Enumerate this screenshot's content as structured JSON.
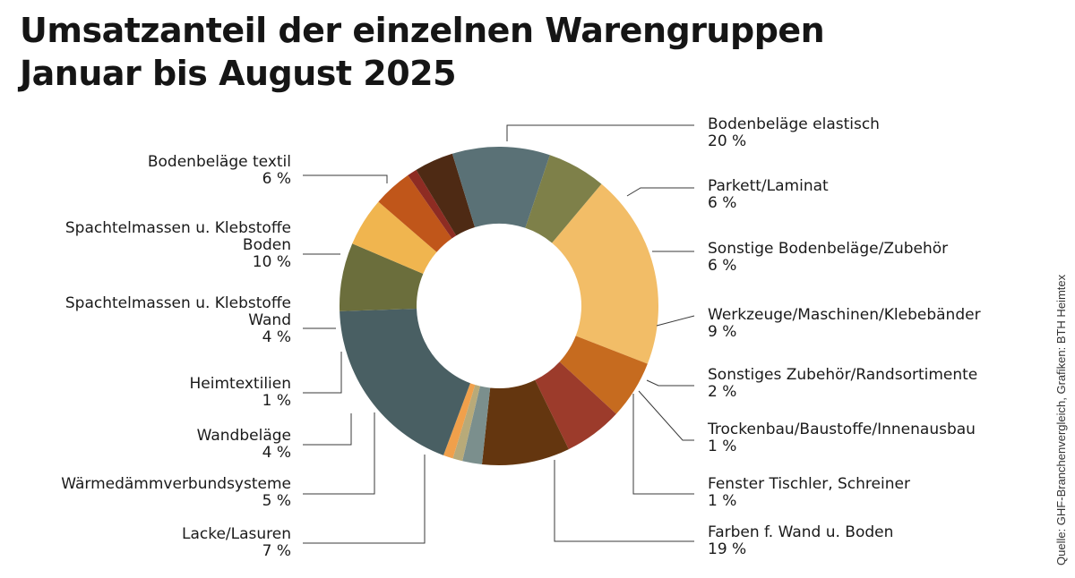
{
  "chart_data": {
    "type": "pie",
    "title_lines": [
      "Umsatzanteil der einzelnen Warengruppen",
      "Januar bis August 2025"
    ],
    "unit": "%",
    "slices": [
      {
        "label_lines": [
          "Bodenbeläge elastisch"
        ],
        "value": 20,
        "value_text": "20 %",
        "color": "#f2bd67"
      },
      {
        "label_lines": [
          "Parkett/Laminat"
        ],
        "value": 6,
        "value_text": "6 %",
        "color": "#c66b1f"
      },
      {
        "label_lines": [
          "Sonstige Bodenbeläge/Zubehör"
        ],
        "value": 6,
        "value_text": "6 %",
        "color": "#9c3b2b"
      },
      {
        "label_lines": [
          "Werkzeuge/Maschinen/Klebebänder"
        ],
        "value": 9,
        "value_text": "9 %",
        "color": "#64360f"
      },
      {
        "label_lines": [
          "Sonstiges Zubehör/Randsortimente"
        ],
        "value": 2,
        "value_text": "2 %",
        "color": "#7b8f8d"
      },
      {
        "label_lines": [
          "Trockenbau/Baustoffe/Innenausbau"
        ],
        "value": 1,
        "value_text": "1 %",
        "color": "#b8aa79"
      },
      {
        "label_lines": [
          "Fenster Tischler, Schreiner"
        ],
        "value": 1,
        "value_text": "1 %",
        "color": "#f0a04b"
      },
      {
        "label_lines": [
          "Farben f. Wand u. Boden"
        ],
        "value": 19,
        "value_text": "19 %",
        "color": "#495f63"
      },
      {
        "label_lines": [
          "Lacke/Lasuren"
        ],
        "value": 7,
        "value_text": "7 %",
        "color": "#6b6e3c"
      },
      {
        "label_lines": [
          "Wärmedämmverbundsysteme"
        ],
        "value": 5,
        "value_text": "5 %",
        "color": "#f0b54f"
      },
      {
        "label_lines": [
          "Wandbeläge"
        ],
        "value": 4,
        "value_text": "4 %",
        "color": "#c0561a"
      },
      {
        "label_lines": [
          "Heimtextilien"
        ],
        "value": 1,
        "value_text": "1 %",
        "color": "#8e2c23"
      },
      {
        "label_lines": [
          "Spachtelmassen u. Klebstoffe",
          "Wand"
        ],
        "value": 4,
        "value_text": "4 %",
        "color": "#4e2a14"
      },
      {
        "label_lines": [
          "Spachtelmassen u. Klebstoffe",
          "Boden"
        ],
        "value": 10,
        "value_text": "10 %",
        "color": "#5a7176"
      },
      {
        "label_lines": [
          "Bodenbeläge textil"
        ],
        "value": 6,
        "value_text": "6 %",
        "color": "#7e8049"
      }
    ]
  },
  "source": "Quelle: GHF-Branchenvergleich, Grafiken: BTH Heimtex"
}
